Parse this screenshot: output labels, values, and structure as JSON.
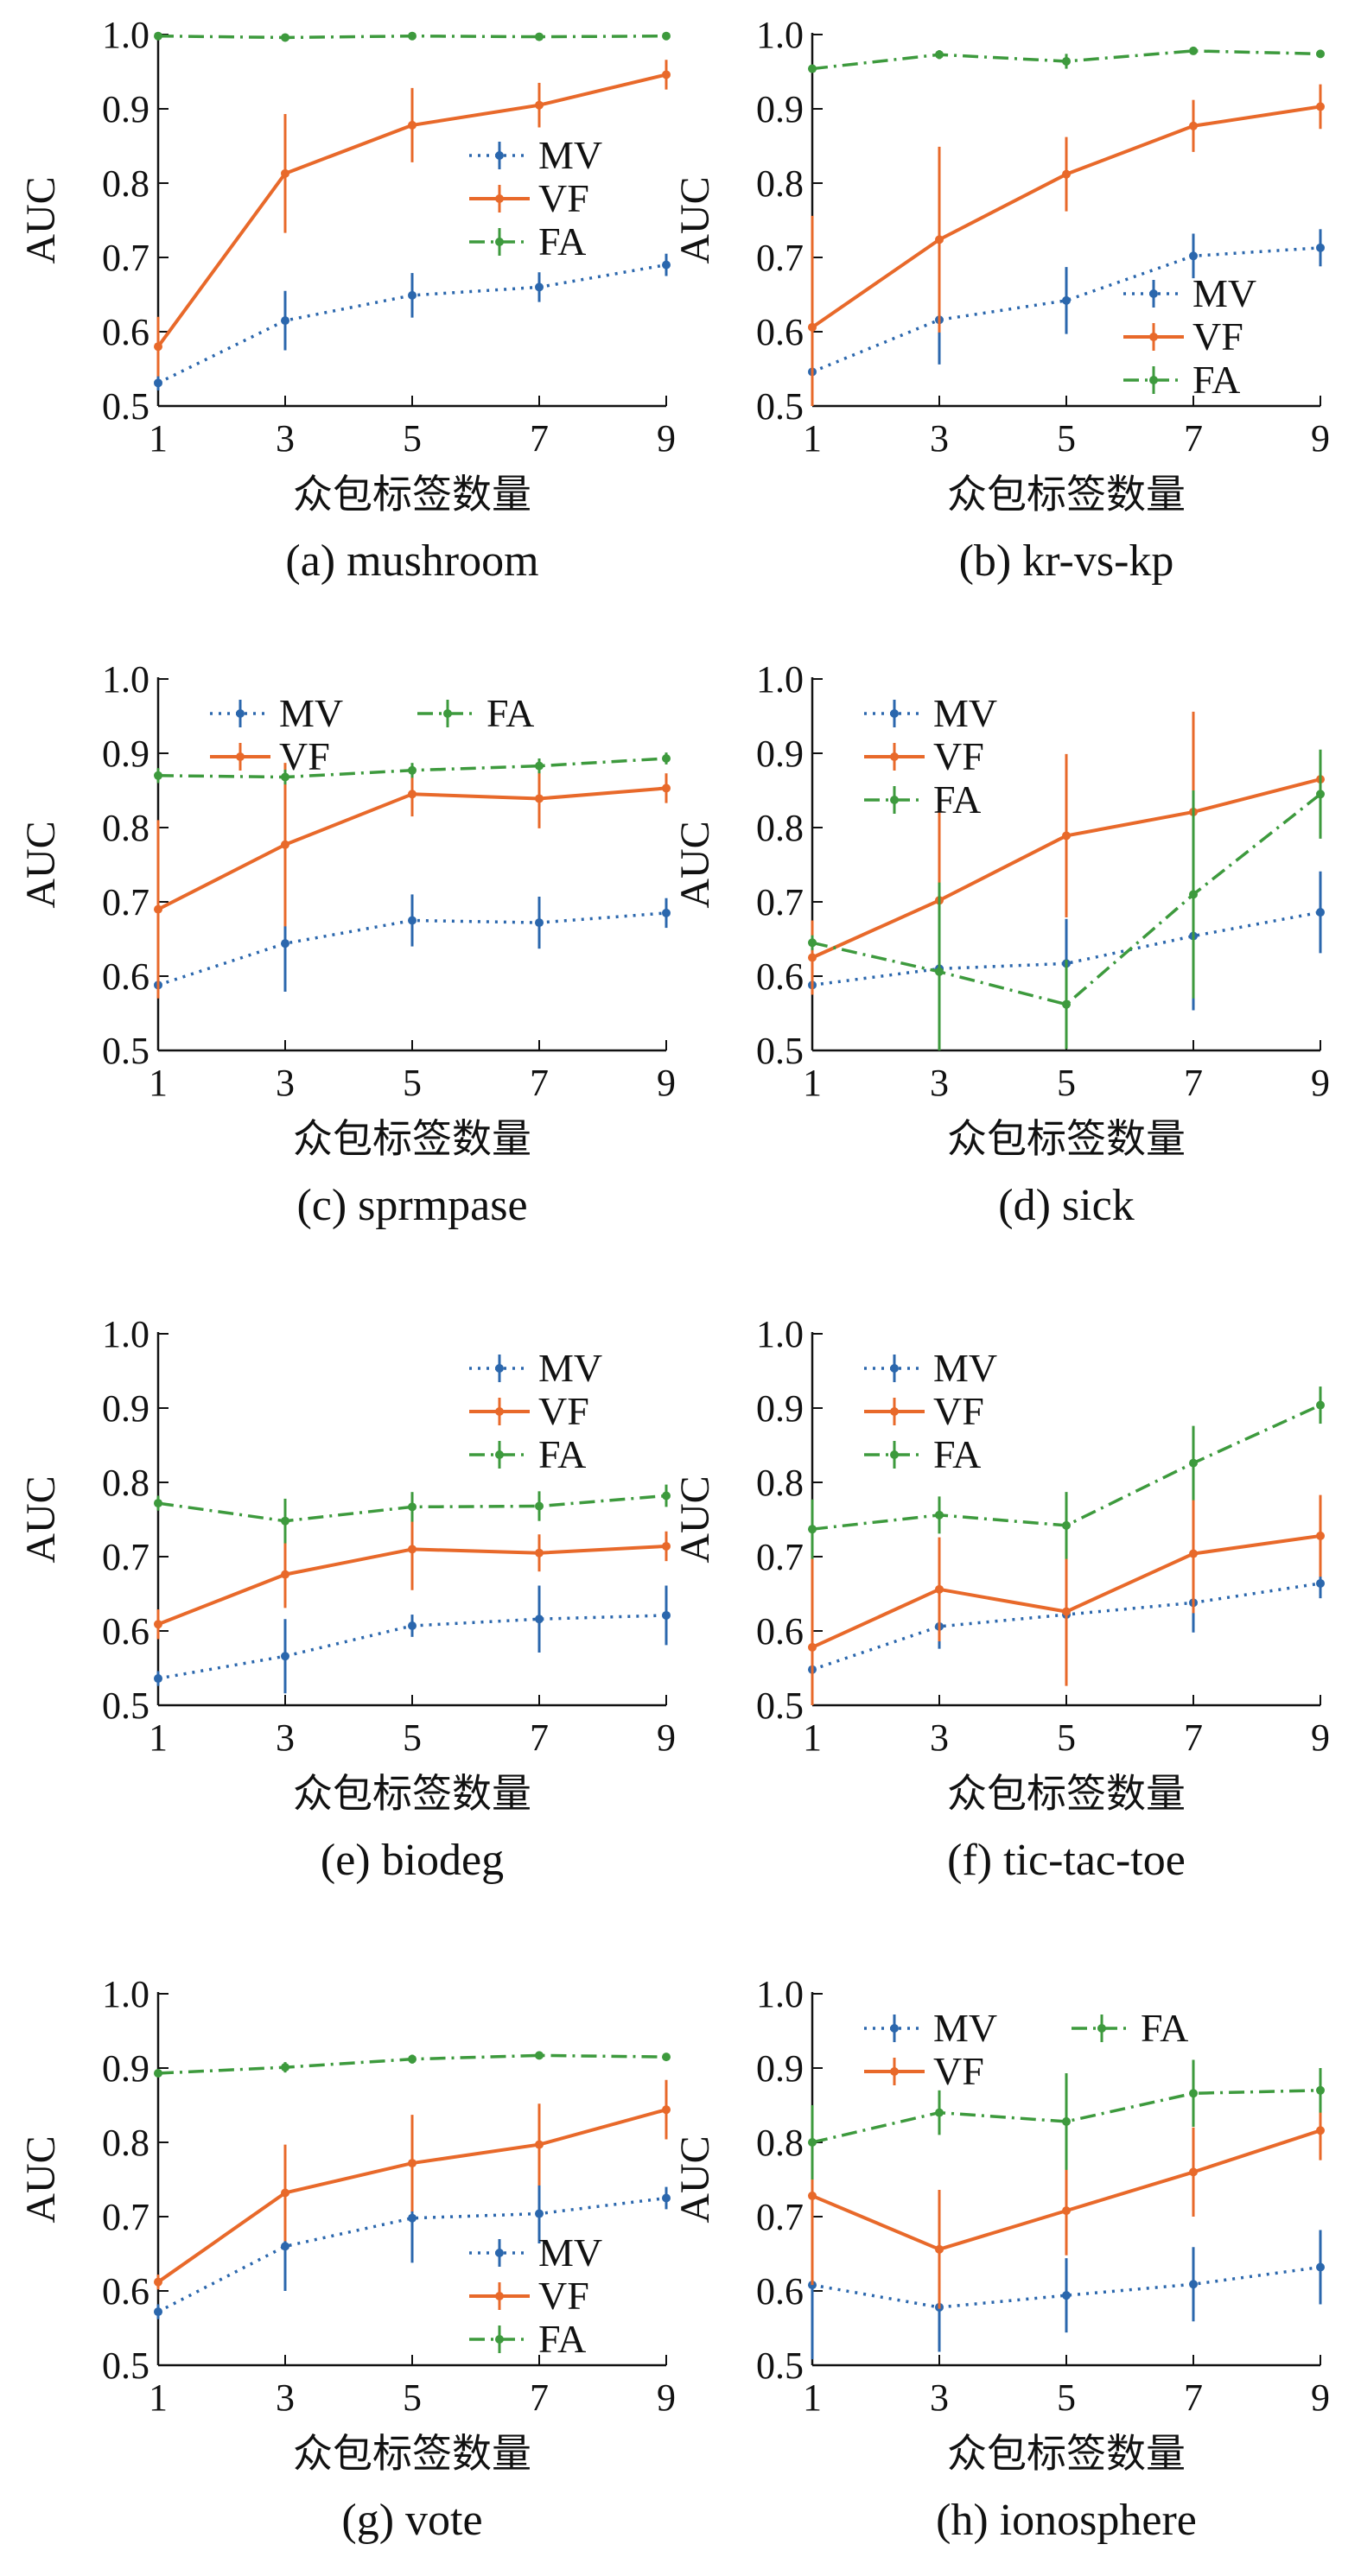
{
  "colors": {
    "MV": "#2b67ad",
    "VF": "#e8692a",
    "FA": "#3d9a3d",
    "axis": "#111111"
  },
  "series_styles": {
    "MV": "dotted",
    "VF": "solid",
    "FA": "dashdot"
  },
  "chart_data": [
    {
      "type": "line",
      "caption": "(a) mushroom",
      "xlabel": "众包标签数量",
      "ylabel": "AUC",
      "x": [
        1,
        3,
        5,
        7,
        9
      ],
      "xlim": [
        1,
        9
      ],
      "ylim": [
        0.5,
        1.0
      ],
      "yticks": [
        "0.5",
        "0.6",
        "0.7",
        "0.8",
        "0.9",
        "1.0"
      ],
      "xticks": [
        "1",
        "3",
        "5",
        "7",
        "9"
      ],
      "legend": {
        "position": "center-right",
        "layout": "column"
      },
      "series": [
        {
          "name": "MV",
          "values": [
            0.531,
            0.615,
            0.649,
            0.66,
            0.69
          ],
          "errors": [
            0.01,
            0.04,
            0.03,
            0.02,
            0.015
          ]
        },
        {
          "name": "VF",
          "values": [
            0.58,
            0.813,
            0.878,
            0.905,
            0.946
          ],
          "errors": [
            0.04,
            0.08,
            0.05,
            0.03,
            0.02
          ]
        },
        {
          "name": "FA",
          "values": [
            0.998,
            0.996,
            0.998,
            0.997,
            0.998
          ],
          "errors": [
            0.003,
            0.003,
            0.003,
            0.003,
            0.003
          ]
        }
      ]
    },
    {
      "type": "line",
      "caption": "(b) kr-vs-kp",
      "xlabel": "众包标签数量",
      "ylabel": "AUC",
      "x": [
        1,
        3,
        5,
        7,
        9
      ],
      "xlim": [
        1,
        9
      ],
      "ylim": [
        0.5,
        1.0
      ],
      "yticks": [
        "0.5",
        "0.6",
        "0.7",
        "0.8",
        "0.9",
        "1.0"
      ],
      "xticks": [
        "1",
        "3",
        "5",
        "7",
        "9"
      ],
      "legend": {
        "position": "bottom-right",
        "layout": "column"
      },
      "series": [
        {
          "name": "MV",
          "values": [
            0.546,
            0.616,
            0.642,
            0.702,
            0.713
          ],
          "errors": [
            0.01,
            0.06,
            0.045,
            0.03,
            0.025
          ]
        },
        {
          "name": "VF",
          "values": [
            0.606,
            0.724,
            0.812,
            0.877,
            0.903
          ],
          "errors": [
            0.15,
            0.125,
            0.05,
            0.035,
            0.03
          ]
        },
        {
          "name": "FA",
          "values": [
            0.954,
            0.973,
            0.964,
            0.978,
            0.974
          ],
          "errors": [
            0.005,
            0.006,
            0.01,
            0.004,
            0.004
          ]
        }
      ]
    },
    {
      "type": "line",
      "caption": "(c) sprmpase",
      "xlabel": "众包标签数量",
      "ylabel": "AUC",
      "x": [
        1,
        3,
        5,
        7,
        9
      ],
      "xlim": [
        1,
        9
      ],
      "ylim": [
        0.5,
        1.0
      ],
      "yticks": [
        "0.5",
        "0.6",
        "0.7",
        "0.8",
        "0.9",
        "1.0"
      ],
      "xticks": [
        "1",
        "3",
        "5",
        "7",
        "9"
      ],
      "legend": {
        "position": "top-left",
        "layout": "two-column"
      },
      "series": [
        {
          "name": "MV",
          "values": [
            0.588,
            0.644,
            0.675,
            0.672,
            0.685
          ],
          "errors": [
            0.01,
            0.065,
            0.035,
            0.035,
            0.02
          ]
        },
        {
          "name": "VF",
          "values": [
            0.69,
            0.777,
            0.845,
            0.839,
            0.853
          ],
          "errors": [
            0.12,
            0.11,
            0.03,
            0.04,
            0.02
          ]
        },
        {
          "name": "FA",
          "values": [
            0.87,
            0.868,
            0.877,
            0.883,
            0.893
          ],
          "errors": [
            0.01,
            0.01,
            0.01,
            0.01,
            0.008
          ]
        }
      ]
    },
    {
      "type": "line",
      "caption": "(d) sick",
      "xlabel": "众包标签数量",
      "ylabel": "AUC",
      "x": [
        1,
        3,
        5,
        7,
        9
      ],
      "xlim": [
        1,
        9
      ],
      "ylim": [
        0.5,
        1.0
      ],
      "yticks": [
        "0.5",
        "0.6",
        "0.7",
        "0.8",
        "0.9",
        "1.0"
      ],
      "xticks": [
        "1",
        "3",
        "5",
        "7",
        "9"
      ],
      "legend": {
        "position": "top-left",
        "layout": "column"
      },
      "series": [
        {
          "name": "MV",
          "values": [
            0.588,
            0.61,
            0.617,
            0.654,
            0.686
          ],
          "errors": [
            0.01,
            0.04,
            0.06,
            0.1,
            0.055
          ]
        },
        {
          "name": "VF",
          "values": [
            0.625,
            0.702,
            0.789,
            0.821,
            0.865
          ],
          "errors": [
            0.05,
            0.14,
            0.11,
            0.135,
            0.03
          ]
        },
        {
          "name": "FA",
          "values": [
            0.645,
            0.606,
            0.562,
            0.71,
            0.845
          ],
          "errors": [
            0.01,
            0.12,
            0.06,
            0.14,
            0.06
          ]
        }
      ]
    },
    {
      "type": "line",
      "caption": "(e) biodeg",
      "xlabel": "众包标签数量",
      "ylabel": "AUC",
      "x": [
        1,
        3,
        5,
        7,
        9
      ],
      "xlim": [
        1,
        9
      ],
      "ylim": [
        0.5,
        1.0
      ],
      "yticks": [
        "0.5",
        "0.6",
        "0.7",
        "0.8",
        "0.9",
        "1.0"
      ],
      "xticks": [
        "1",
        "3",
        "5",
        "7",
        "9"
      ],
      "legend": {
        "position": "top-right",
        "layout": "column"
      },
      "series": [
        {
          "name": "MV",
          "values": [
            0.536,
            0.566,
            0.607,
            0.616,
            0.621
          ],
          "errors": [
            0.01,
            0.05,
            0.015,
            0.045,
            0.04
          ]
        },
        {
          "name": "VF",
          "values": [
            0.609,
            0.676,
            0.71,
            0.705,
            0.714
          ],
          "errors": [
            0.02,
            0.045,
            0.055,
            0.025,
            0.02
          ]
        },
        {
          "name": "FA",
          "values": [
            0.772,
            0.748,
            0.767,
            0.768,
            0.782
          ],
          "errors": [
            0.01,
            0.03,
            0.02,
            0.02,
            0.015
          ]
        }
      ]
    },
    {
      "type": "line",
      "caption": "(f) tic-tac-toe",
      "xlabel": "众包标签数量",
      "ylabel": "AUC",
      "x": [
        1,
        3,
        5,
        7,
        9
      ],
      "xlim": [
        1,
        9
      ],
      "ylim": [
        0.5,
        1.0
      ],
      "yticks": [
        "0.5",
        "0.6",
        "0.7",
        "0.8",
        "0.9",
        "1.0"
      ],
      "xticks": [
        "1",
        "3",
        "5",
        "7",
        "9"
      ],
      "legend": {
        "position": "top-left",
        "layout": "column"
      },
      "series": [
        {
          "name": "MV",
          "values": [
            0.548,
            0.606,
            0.622,
            0.638,
            0.664
          ],
          "errors": [
            0.01,
            0.03,
            0.015,
            0.04,
            0.02
          ]
        },
        {
          "name": "VF",
          "values": [
            0.578,
            0.656,
            0.626,
            0.704,
            0.728
          ],
          "errors": [
            0.12,
            0.07,
            0.1,
            0.08,
            0.055
          ]
        },
        {
          "name": "FA",
          "values": [
            0.737,
            0.756,
            0.742,
            0.826,
            0.904
          ],
          "errors": [
            0.04,
            0.025,
            0.045,
            0.05,
            0.025
          ]
        }
      ]
    },
    {
      "type": "line",
      "caption": "(g) vote",
      "xlabel": "众包标签数量",
      "ylabel": "AUC",
      "x": [
        1,
        3,
        5,
        7,
        9
      ],
      "xlim": [
        1,
        9
      ],
      "ylim": [
        0.5,
        1.0
      ],
      "yticks": [
        "0.5",
        "0.6",
        "0.7",
        "0.8",
        "0.9",
        "1.0"
      ],
      "xticks": [
        "1",
        "3",
        "5",
        "7",
        "9"
      ],
      "legend": {
        "position": "bottom-right",
        "layout": "column"
      },
      "series": [
        {
          "name": "MV",
          "values": [
            0.572,
            0.66,
            0.698,
            0.704,
            0.725
          ],
          "errors": [
            0.01,
            0.06,
            0.06,
            0.04,
            0.015
          ]
        },
        {
          "name": "VF",
          "values": [
            0.612,
            0.732,
            0.772,
            0.797,
            0.844
          ],
          "errors": [
            0.01,
            0.065,
            0.065,
            0.055,
            0.04
          ]
        },
        {
          "name": "FA",
          "values": [
            0.893,
            0.901,
            0.912,
            0.917,
            0.915
          ],
          "errors": [
            0.005,
            0.007,
            0.006,
            0.004,
            0.003
          ]
        }
      ]
    },
    {
      "type": "line",
      "caption": "(h) ionosphere",
      "xlabel": "众包标签数量",
      "ylabel": "AUC",
      "x": [
        1,
        3,
        5,
        7,
        9
      ],
      "xlim": [
        1,
        9
      ],
      "ylim": [
        0.5,
        1.0
      ],
      "yticks": [
        "0.5",
        "0.6",
        "0.7",
        "0.8",
        "0.9",
        "1.0"
      ],
      "xticks": [
        "1",
        "3",
        "5",
        "7",
        "9"
      ],
      "legend": {
        "position": "top-left",
        "layout": "two-column"
      },
      "series": [
        {
          "name": "MV",
          "values": [
            0.608,
            0.578,
            0.594,
            0.609,
            0.632
          ],
          "errors": [
            0.1,
            0.06,
            0.05,
            0.05,
            0.05
          ]
        },
        {
          "name": "VF",
          "values": [
            0.728,
            0.656,
            0.708,
            0.76,
            0.816
          ],
          "errors": [
            0.12,
            0.08,
            0.06,
            0.06,
            0.04
          ]
        },
        {
          "name": "FA",
          "values": [
            0.8,
            0.84,
            0.828,
            0.866,
            0.87
          ],
          "errors": [
            0.05,
            0.03,
            0.065,
            0.045,
            0.03
          ]
        }
      ]
    }
  ]
}
